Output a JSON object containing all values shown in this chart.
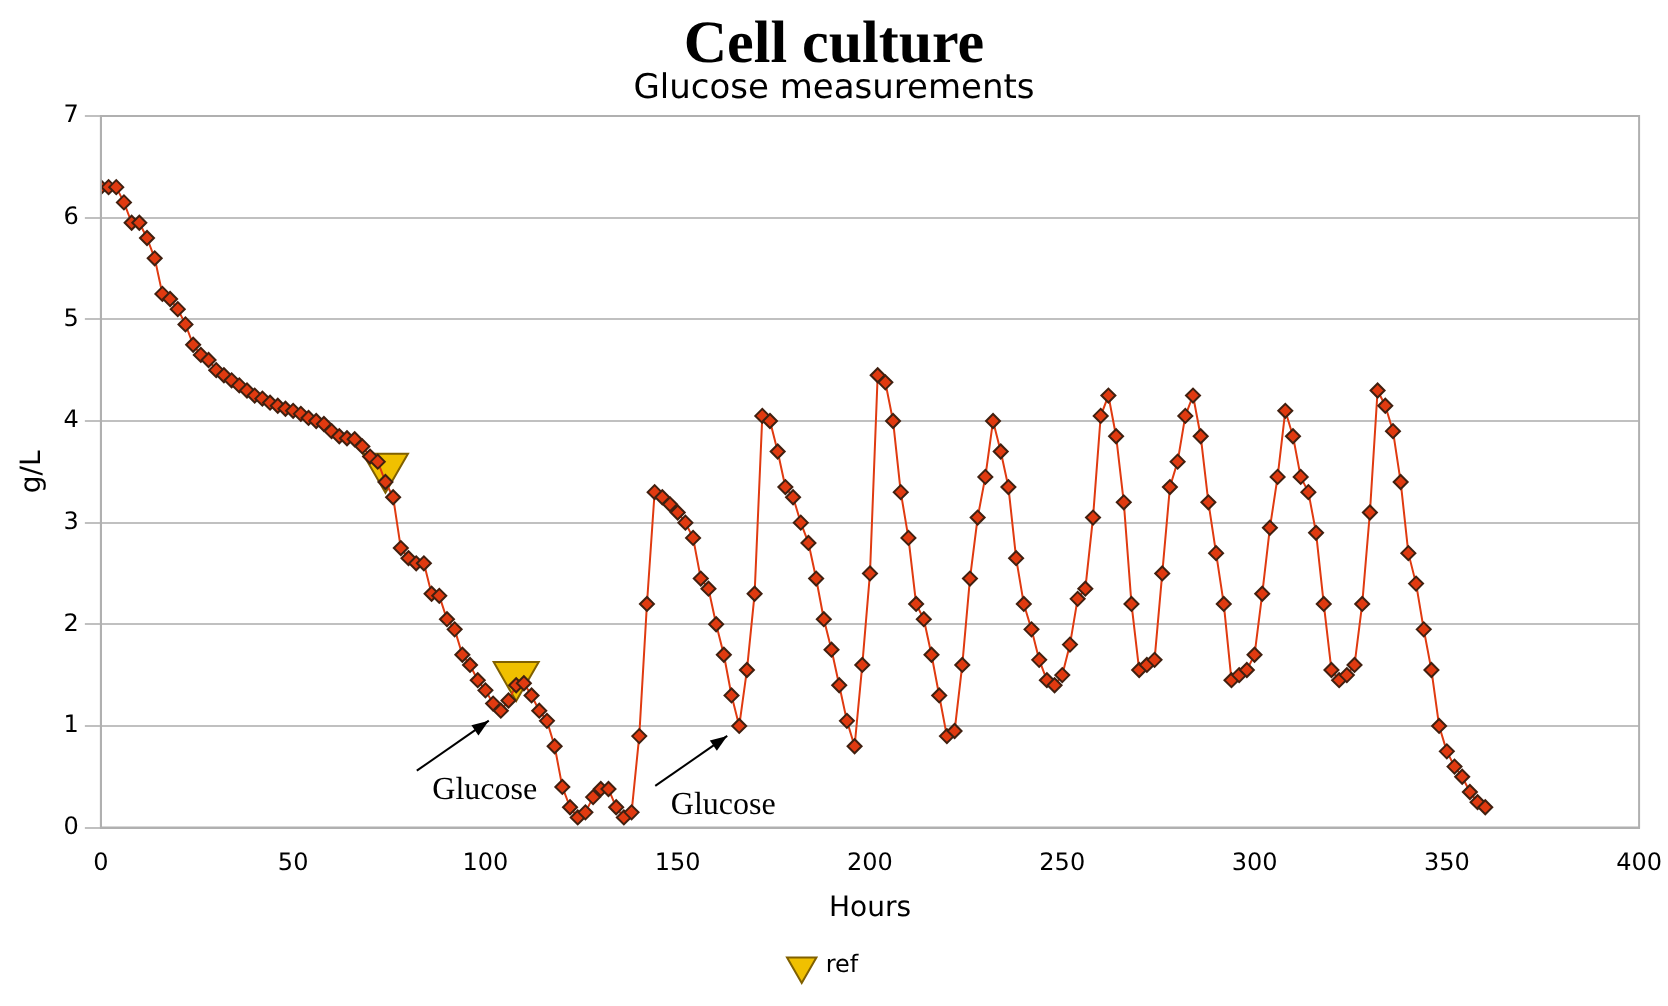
{
  "chart_data": {
    "type": "line",
    "title": "Cell culture",
    "subtitle": "Glucose measurements",
    "xlabel": "Hours",
    "ylabel": "g/L",
    "xlim": [
      0,
      400
    ],
    "xticks": [
      0,
      50,
      100,
      150,
      200,
      250,
      300,
      350,
      400
    ],
    "ylim": [
      0,
      7
    ],
    "yticks": [
      0,
      1,
      2,
      3,
      4,
      5,
      6,
      7
    ],
    "grid": "y",
    "legend": "bottom",
    "marker": "diamond",
    "line_style": "solid",
    "annotations": [
      {
        "text": "Glucose",
        "x": 104,
        "y": 1.15
      },
      {
        "text": "Glucose",
        "x": 166,
        "y": 1.0
      }
    ],
    "series": [
      {
        "type": "line",
        "color": "#e03a10",
        "x": [
          0,
          2,
          4,
          6,
          8,
          10,
          12,
          14,
          16,
          18,
          20,
          22,
          24,
          26,
          28,
          30,
          32,
          34,
          36,
          38,
          40,
          42,
          44,
          46,
          48,
          50,
          52,
          54,
          56,
          58,
          60,
          62,
          64,
          66,
          68,
          70,
          72,
          74,
          76,
          78,
          80,
          82,
          84,
          86,
          88,
          90,
          92,
          94,
          96,
          98,
          100,
          102,
          104,
          106,
          108,
          110,
          112,
          114,
          116,
          118,
          120,
          122,
          124,
          126,
          128,
          130,
          132,
          134,
          136,
          138,
          140,
          142,
          144,
          146,
          148,
          150,
          152,
          154,
          156,
          158,
          160,
          162,
          164,
          166,
          168,
          170,
          172,
          174,
          176,
          178,
          180,
          182,
          184,
          186,
          188,
          190,
          192,
          194,
          196,
          198,
          200,
          202,
          204,
          206,
          208,
          210,
          212,
          214,
          216,
          218,
          220,
          222,
          224,
          226,
          228,
          230,
          232,
          234,
          236,
          238,
          240,
          242,
          244,
          246,
          248,
          250,
          252,
          254,
          256,
          258,
          260,
          262,
          264,
          266,
          268,
          270,
          272,
          274,
          276,
          278,
          280,
          282,
          284,
          286,
          288,
          290,
          292,
          294,
          296,
          298,
          300,
          302,
          304,
          306,
          308,
          310,
          312,
          314,
          316,
          318,
          320,
          322,
          324,
          326,
          328,
          330,
          332,
          334,
          336,
          338,
          340,
          342,
          344,
          346,
          348,
          350,
          352,
          354,
          356,
          358,
          360
        ],
        "values": [
          6.3,
          6.3,
          6.3,
          6.15,
          5.95,
          5.95,
          5.8,
          5.6,
          5.25,
          5.2,
          5.1,
          4.95,
          4.75,
          4.65,
          4.6,
          4.5,
          4.45,
          4.4,
          4.35,
          4.3,
          4.25,
          4.22,
          4.18,
          4.15,
          4.12,
          4.1,
          4.07,
          4.03,
          4.0,
          3.97,
          3.9,
          3.85,
          3.83,
          3.82,
          3.75,
          3.65,
          3.6,
          3.4,
          3.25,
          2.75,
          2.65,
          2.6,
          2.6,
          2.3,
          2.28,
          2.05,
          1.95,
          1.7,
          1.6,
          1.45,
          1.35,
          1.22,
          1.15,
          1.25,
          1.4,
          1.42,
          1.3,
          1.15,
          1.05,
          0.8,
          0.4,
          0.2,
          0.1,
          0.15,
          0.3,
          0.38,
          0.38,
          0.2,
          0.1,
          0.15,
          0.9,
          2.2,
          3.3,
          3.25,
          3.18,
          3.1,
          3.0,
          2.85,
          2.45,
          2.35,
          2.0,
          1.7,
          1.3,
          1.0,
          1.55,
          2.3,
          4.05,
          4.0,
          3.7,
          3.35,
          3.25,
          3.0,
          2.8,
          2.45,
          2.05,
          1.75,
          1.4,
          1.05,
          0.8,
          1.6,
          2.5,
          4.45,
          4.38,
          4.0,
          3.3,
          2.85,
          2.2,
          2.05,
          1.7,
          1.3,
          0.9,
          0.95,
          1.6,
          2.45,
          3.05,
          3.45,
          4.0,
          3.7,
          3.35,
          2.65,
          2.2,
          1.95,
          1.65,
          1.45,
          1.4,
          1.5,
          1.8,
          2.25,
          2.35,
          3.05,
          4.05,
          4.25,
          3.85,
          3.2,
          2.2,
          1.55,
          1.6,
          1.65,
          2.5,
          3.35,
          3.6,
          4.05,
          4.25,
          3.85,
          3.2,
          2.7,
          2.2,
          1.45,
          1.5,
          1.55,
          1.7,
          2.3,
          2.95,
          3.45,
          4.1,
          3.85,
          3.45,
          3.3,
          2.9,
          2.2,
          1.55,
          1.45,
          1.5,
          1.6,
          2.2,
          3.1,
          4.3,
          4.15,
          3.9,
          3.4,
          2.7,
          2.4,
          1.95,
          1.55,
          1.0,
          0.75,
          0.6,
          0.5,
          0.35,
          0.25,
          0.2
        ]
      },
      {
        "type": "scatter",
        "name": "ref",
        "color": "#f0c000",
        "marker": "triangle",
        "x": [
          74,
          108
        ],
        "values": [
          3.55,
          1.5
        ]
      }
    ]
  }
}
